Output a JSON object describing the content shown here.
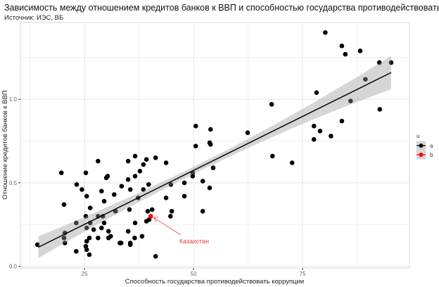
{
  "chart_data": {
    "type": "scatter",
    "title": "Зависимость между отношением кредитов банков к ВВП и способностью государства противодействовать коррупции",
    "subtitle": "Источник: ИЭС, ВБ",
    "xlabel": "Способность государства противодействовать коррупции",
    "ylabel": "Отношение кредитов банков к ВВП",
    "xlim": [
      10.3,
      99.5
    ],
    "ylim": [
      -0.01,
      1.46
    ],
    "x_ticks": [
      25,
      50,
      75
    ],
    "x_tick_labels": [
      "25",
      "50",
      "75"
    ],
    "y_ticks": [
      0.0,
      0.5,
      1.0
    ],
    "y_tick_labels": [
      "0.0",
      "0.5",
      "1.0"
    ],
    "grid": true,
    "legend": {
      "title": "u",
      "placement": "right",
      "entries": [
        {
          "label": "a",
          "color": "#000000"
        },
        {
          "label": "b",
          "color": "#ff0000"
        }
      ]
    },
    "trend": {
      "method": "linear",
      "slope": 0.01293,
      "intercept": -0.072,
      "x_range": [
        14.4,
        95.3
      ],
      "band_halfwidth_ends": 0.065,
      "band_halfwidth_mid": 0.022,
      "band_halfwidth_right": 0.1
    },
    "series": [
      {
        "name": "a",
        "color": "#000000",
        "points": [
          [
            14.2,
            0.13
          ],
          [
            19.7,
            0.56
          ],
          [
            25.3,
            0.56
          ],
          [
            28.1,
            0.63
          ],
          [
            30.0,
            0.53
          ],
          [
            30.3,
            0.54
          ],
          [
            23.2,
            0.49
          ],
          [
            24.4,
            0.46
          ],
          [
            28.9,
            0.45
          ],
          [
            25.5,
            0.42
          ],
          [
            31.8,
            0.43
          ],
          [
            20.3,
            0.37
          ],
          [
            29.5,
            0.39
          ],
          [
            26.3,
            0.35
          ],
          [
            25.3,
            0.3
          ],
          [
            28.1,
            0.3
          ],
          [
            29.2,
            0.3
          ],
          [
            23.1,
            0.26
          ],
          [
            26.3,
            0.26
          ],
          [
            25.5,
            0.23
          ],
          [
            29.5,
            0.26
          ],
          [
            32.1,
            0.33
          ],
          [
            27.1,
            0.22
          ],
          [
            28.9,
            0.23
          ],
          [
            20.5,
            0.2
          ],
          [
            20.3,
            0.17
          ],
          [
            20.5,
            0.14
          ],
          [
            30.5,
            0.21
          ],
          [
            31.0,
            0.18
          ],
          [
            30.5,
            0.17
          ],
          [
            28.1,
            0.17
          ],
          [
            26.1,
            0.17
          ],
          [
            25.5,
            0.15
          ],
          [
            25.3,
            0.12
          ],
          [
            25.5,
            0.1
          ],
          [
            23.1,
            0.09
          ],
          [
            26.1,
            0.07
          ],
          [
            33.1,
            0.14
          ],
          [
            35.0,
            0.63
          ],
          [
            36.6,
            0.66
          ],
          [
            39.2,
            0.64
          ],
          [
            41.3,
            0.65
          ],
          [
            38.5,
            0.61
          ],
          [
            43.7,
            0.62
          ],
          [
            37.7,
            0.57
          ],
          [
            36.6,
            0.54
          ],
          [
            35.0,
            0.52
          ],
          [
            39.7,
            0.49
          ],
          [
            33.5,
            0.48
          ],
          [
            35.5,
            0.46
          ],
          [
            38.5,
            0.46
          ],
          [
            37.3,
            0.41
          ],
          [
            43.7,
            0.41
          ],
          [
            47.9,
            0.42
          ],
          [
            44.8,
            0.49
          ],
          [
            47.9,
            0.5
          ],
          [
            49.8,
            0.56
          ],
          [
            49.8,
            0.54
          ],
          [
            52.1,
            0.51
          ],
          [
            35.3,
            0.34
          ],
          [
            39.5,
            0.33
          ],
          [
            40.5,
            0.34
          ],
          [
            45.0,
            0.33
          ],
          [
            44.7,
            0.3
          ],
          [
            52.1,
            0.33
          ],
          [
            39.2,
            0.27
          ],
          [
            39.8,
            0.28
          ],
          [
            36.6,
            0.26
          ],
          [
            35.0,
            0.21
          ],
          [
            36.5,
            0.17
          ],
          [
            38.2,
            0.18
          ],
          [
            33.4,
            0.14
          ],
          [
            33.2,
            0.14
          ],
          [
            35.5,
            0.14
          ],
          [
            35.5,
            0.13
          ],
          [
            41.3,
            0.06
          ],
          [
            50.5,
            0.84
          ],
          [
            53.9,
            0.82
          ],
          [
            50.5,
            0.72
          ],
          [
            53.7,
            0.74
          ],
          [
            53.9,
            0.73
          ],
          [
            62.4,
            0.8
          ],
          [
            68.1,
            0.66
          ],
          [
            72.6,
            0.62
          ],
          [
            54.5,
            0.59
          ],
          [
            53.7,
            0.47
          ],
          [
            80.2,
            1.4
          ],
          [
            84.0,
            1.32
          ],
          [
            84.8,
            1.27
          ],
          [
            88.2,
            1.29
          ],
          [
            92.6,
            1.22
          ],
          [
            95.3,
            1.22
          ],
          [
            89.4,
            1.12
          ],
          [
            78.2,
            1.04
          ],
          [
            86.0,
            0.99
          ],
          [
            92.7,
            0.94
          ],
          [
            84.0,
            0.87
          ],
          [
            77.6,
            0.84
          ],
          [
            79.0,
            0.81
          ],
          [
            81.5,
            0.78
          ],
          [
            77.6,
            0.76
          ],
          [
            67.9,
            0.97
          ]
        ]
      },
      {
        "name": "b",
        "color": "#ff0000",
        "points": [
          [
            40.2,
            0.3
          ]
        ]
      }
    ],
    "annotations": [
      {
        "text": "Казахстан",
        "color": "#e8413c",
        "points_to": [
          40.2,
          0.3
        ]
      }
    ]
  }
}
